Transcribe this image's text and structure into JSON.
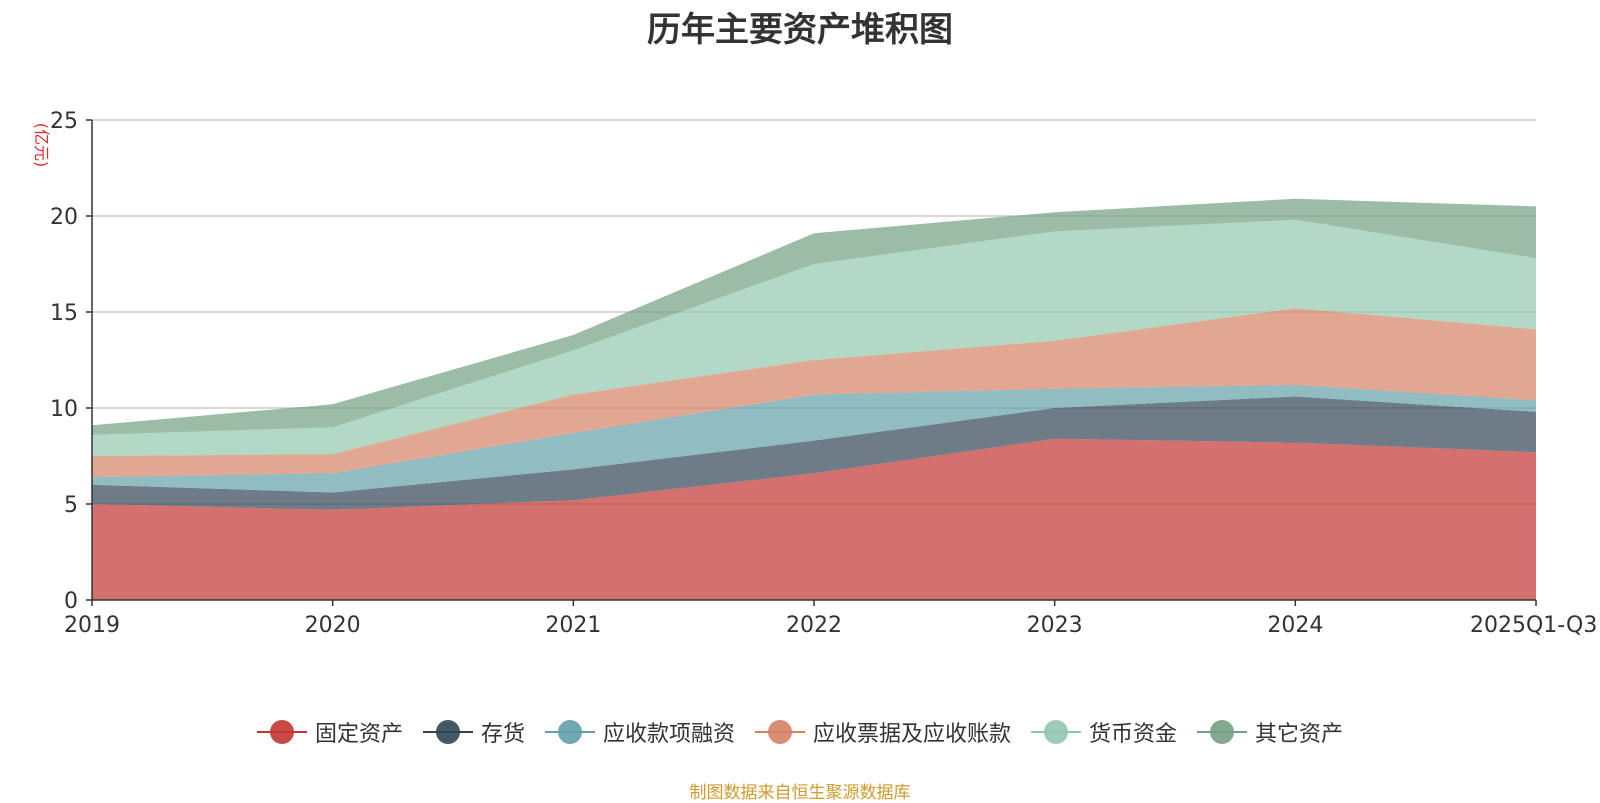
{
  "chart_data": {
    "type": "area",
    "stacked": true,
    "title": "历年主要资产堆积图",
    "ylabel": "(亿元)",
    "xlabel": "",
    "ylim": [
      0,
      25
    ],
    "yticks": [
      0,
      5,
      10,
      15,
      20,
      25
    ],
    "categories": [
      "2019",
      "2020",
      "2021",
      "2022",
      "2023",
      "2024",
      "2025Q1-Q3"
    ],
    "grid": true,
    "legend_position": "bottom",
    "series": [
      {
        "name": "固定资产",
        "color": "#c23531",
        "values": [
          5.0,
          4.7,
          5.2,
          6.6,
          8.4,
          8.2,
          7.7
        ]
      },
      {
        "name": "存货",
        "color": "#2f4554",
        "values": [
          1.0,
          0.9,
          1.6,
          1.7,
          1.6,
          2.4,
          2.1
        ]
      },
      {
        "name": "应收款项融资",
        "color": "#61a0a8",
        "values": [
          0.4,
          1.0,
          1.9,
          2.4,
          1.0,
          0.6,
          0.6
        ]
      },
      {
        "name": "应收票据及应收账款",
        "color": "#d48265",
        "values": [
          1.1,
          1.0,
          2.0,
          1.8,
          2.5,
          4.0,
          3.7
        ]
      },
      {
        "name": "货币资金",
        "color": "#91c7ae",
        "values": [
          1.1,
          1.4,
          2.3,
          5.0,
          5.7,
          4.6,
          3.7
        ]
      },
      {
        "name": "其它资产",
        "color": "#749f83",
        "values": [
          0.5,
          1.2,
          0.8,
          1.6,
          1.0,
          1.1,
          2.7
        ]
      }
    ],
    "source": "制图数据来自恒生聚源数据库"
  }
}
